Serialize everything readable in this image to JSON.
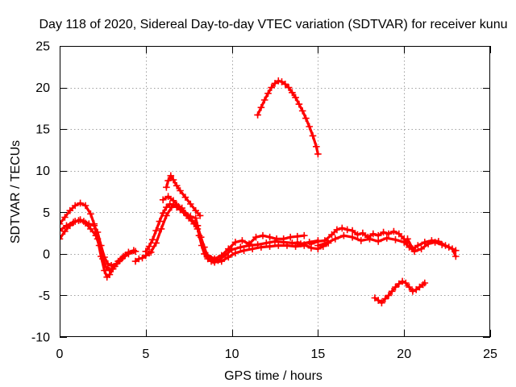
{
  "chart_data": {
    "type": "scatter",
    "title": "Day 118 of 2020, Sidereal Day-to-day VTEC variation (SDTVAR) for receiver kunu",
    "xlabel": "GPS time / hours",
    "ylabel": "SDTVAR / TECUs",
    "xlim": [
      0,
      25
    ],
    "ylim": [
      -10,
      25
    ],
    "xticks": [
      0,
      5,
      10,
      15,
      20,
      25
    ],
    "yticks": [
      -10,
      -5,
      0,
      5,
      10,
      15,
      20,
      25
    ],
    "grid": true,
    "color": "#ff0000",
    "series": [
      {
        "x": [
          0,
          0.3,
          0.6,
          0.9,
          1.2,
          1.5,
          1.8,
          2.0,
          2.2,
          2.4,
          2.6,
          2.75,
          2.9,
          3.1,
          3.4,
          3.7,
          4.0,
          4.3
        ],
        "y": [
          3.6,
          4.4,
          5.2,
          5.8,
          6.1,
          5.8,
          4.8,
          3.6,
          1.8,
          -0.3,
          -2.0,
          -2.8,
          -2.5,
          -1.8,
          -0.9,
          -0.3,
          0.2,
          0.4
        ]
      },
      {
        "x": [
          0,
          0.3,
          0.6,
          0.9,
          1.2,
          1.5,
          1.8,
          2.1,
          2.3,
          2.5,
          2.7,
          2.9,
          3.2,
          3.5,
          3.8
        ],
        "y": [
          1.8,
          2.7,
          3.4,
          3.9,
          4.1,
          3.7,
          3.0,
          2.2,
          1.0,
          -0.6,
          -1.6,
          -2.0,
          -1.5,
          -0.8,
          -0.2
        ]
      },
      {
        "x": [
          0,
          0.4,
          0.8,
          1.1,
          1.4,
          1.7,
          2.0,
          2.2,
          2.4,
          2.6,
          2.8,
          3.0,
          3.3,
          3.6,
          4.0,
          4.4
        ],
        "y": [
          2.8,
          3.4,
          3.8,
          4.0,
          3.9,
          3.6,
          3.4,
          2.6,
          1.0,
          -0.4,
          -1.2,
          -1.4,
          -1.2,
          -0.6,
          0.0,
          0.3
        ]
      },
      {
        "x": [
          4.4,
          4.6,
          4.8,
          5.0,
          5.2
        ],
        "y": [
          -0.9,
          -0.6,
          -0.5,
          -0.2,
          0.1
        ]
      },
      {
        "x": [
          5.0,
          5.2,
          5.4,
          5.6,
          5.8,
          6.0,
          6.2,
          6.4,
          6.6,
          6.8,
          7.0,
          7.3,
          7.6,
          7.9,
          8.0,
          8.1,
          8.25,
          8.4,
          8.6,
          8.8,
          9.0
        ],
        "y": [
          0.3,
          0.9,
          1.7,
          2.8,
          3.9,
          4.9,
          5.6,
          6.0,
          5.9,
          5.6,
          5.3,
          4.9,
          4.5,
          4.3,
          3.4,
          2.2,
          1.0,
          0.0,
          -0.6,
          -0.9,
          -1.0
        ]
      },
      {
        "x": [
          6.2,
          6.3,
          6.45,
          6.6,
          6.8,
          7.0,
          7.3,
          7.6,
          7.9,
          8.15
        ],
        "y": [
          8.0,
          8.8,
          9.4,
          8.9,
          8.2,
          7.6,
          6.8,
          6.0,
          5.2,
          4.6
        ]
      },
      {
        "x": [
          5.3,
          5.6,
          5.9,
          6.2,
          6.5,
          6.8,
          7.1,
          7.4,
          7.7,
          8.0,
          8.2,
          8.4,
          8.6,
          8.9
        ],
        "y": [
          0.2,
          1.3,
          3.0,
          4.6,
          5.6,
          5.9,
          5.5,
          4.6,
          4.0,
          3.4,
          2.0,
          0.8,
          -0.4,
          -0.8
        ]
      },
      {
        "x": [
          6.0,
          6.3,
          6.6,
          6.9,
          7.2,
          7.5,
          7.8,
          8.0
        ],
        "y": [
          6.5,
          6.9,
          6.4,
          5.7,
          5.0,
          4.3,
          3.6,
          3.0
        ]
      },
      {
        "x": [
          8.6,
          9.0,
          9.4,
          9.8,
          10.2,
          10.6,
          11.0,
          11.4,
          11.8,
          12.2,
          12.6,
          13.0,
          13.4,
          13.8,
          14.2
        ],
        "y": [
          -0.2,
          -0.6,
          -0.2,
          0.6,
          1.4,
          1.6,
          1.2,
          2.0,
          2.2,
          2.0,
          1.8,
          1.8,
          2.0,
          2.1,
          2.2
        ]
      },
      {
        "x": [
          8.8,
          9.2,
          9.6,
          10.0,
          10.5,
          11.0,
          11.5,
          12.0,
          12.5,
          13.0,
          13.5,
          14.0,
          14.5,
          15.0
        ],
        "y": [
          -0.6,
          -0.8,
          -0.2,
          0.5,
          0.8,
          1.0,
          1.1,
          1.3,
          1.5,
          1.4,
          1.3,
          1.2,
          1.4,
          1.6
        ]
      },
      {
        "x": [
          9.0,
          9.4,
          9.8,
          10.2,
          10.7,
          11.2,
          11.7,
          12.2,
          12.7,
          13.2,
          13.7,
          14.2
        ],
        "y": [
          -1.0,
          -0.9,
          -0.4,
          0.1,
          0.4,
          0.6,
          0.8,
          0.9,
          1.0,
          1.0,
          0.9,
          1.0
        ]
      },
      {
        "x": [
          11.5,
          11.7,
          11.9,
          12.1,
          12.3,
          12.5,
          12.7,
          12.9,
          13.1,
          13.3,
          13.5,
          13.7,
          13.9,
          14.1,
          14.3,
          14.5,
          14.7,
          14.9,
          15.0
        ],
        "y": [
          16.7,
          17.6,
          18.5,
          19.3,
          20.0,
          20.5,
          20.8,
          20.7,
          20.4,
          20.0,
          19.4,
          18.8,
          18.0,
          17.2,
          16.3,
          15.3,
          14.2,
          12.9,
          12.0
        ]
      },
      {
        "x": [
          14.6,
          15.0,
          15.4,
          15.8,
          16.1,
          16.4,
          16.7,
          17.0,
          17.3,
          17.6,
          17.9,
          18.2,
          18.5,
          18.8,
          19.1,
          19.4,
          19.7,
          20.0,
          20.2
        ],
        "y": [
          1.2,
          1.5,
          1.6,
          2.3,
          2.9,
          3.1,
          2.9,
          2.8,
          2.3,
          2.5,
          2.0,
          2.4,
          2.2,
          2.6,
          2.4,
          2.7,
          2.4,
          1.8,
          1.3
        ]
      },
      {
        "x": [
          15.0,
          15.5,
          16.0,
          16.5,
          17.0,
          17.5,
          18.0,
          18.5,
          19.0,
          19.5,
          20.0,
          20.3,
          20.6,
          21.0,
          21.4,
          21.8,
          22.2,
          22.6,
          23.0
        ],
        "y": [
          1.0,
          1.3,
          1.8,
          2.2,
          2.0,
          1.6,
          1.8,
          1.5,
          1.9,
          1.7,
          1.4,
          0.8,
          0.3,
          0.6,
          1.2,
          1.4,
          1.1,
          0.8,
          0.4
        ]
      },
      {
        "x": [
          20.2,
          20.5,
          20.8,
          21.2,
          21.6,
          22.0,
          22.4,
          22.8,
          23.0
        ],
        "y": [
          1.8,
          0.6,
          1.0,
          1.4,
          1.6,
          1.5,
          1.0,
          0.6,
          -0.3
        ]
      },
      {
        "x": [
          18.3,
          18.5,
          18.7,
          18.9,
          19.1,
          19.3,
          19.5,
          19.7,
          19.9,
          20.1,
          20.3,
          20.5,
          20.7,
          20.9,
          21.1,
          21.2
        ],
        "y": [
          -5.3,
          -5.6,
          -5.9,
          -5.4,
          -5.0,
          -4.5,
          -4.0,
          -3.6,
          -3.3,
          -3.5,
          -4.0,
          -4.5,
          -4.3,
          -4.0,
          -3.7,
          -3.5
        ]
      },
      {
        "x": [
          13.8,
          14.2,
          14.6,
          15.0,
          15.3,
          15.6
        ],
        "y": [
          1.4,
          1.1,
          0.7,
          0.6,
          0.9,
          1.3
        ]
      }
    ]
  }
}
